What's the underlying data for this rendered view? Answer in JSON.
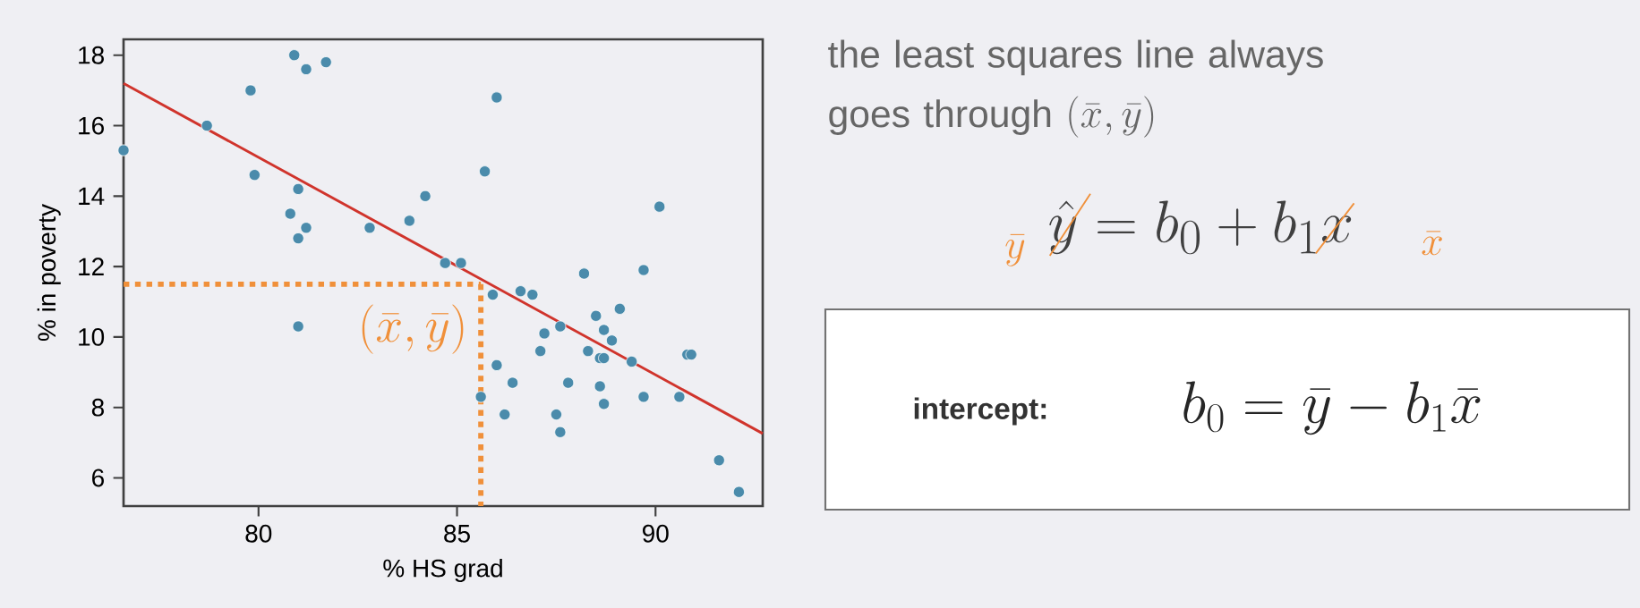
{
  "chart_data": {
    "type": "scatter",
    "xlabel": "% HS grad",
    "ylabel": "% in poverty",
    "xlim": [
      76.6,
      92.7
    ],
    "ylim": [
      5.2,
      18.45
    ],
    "xticks": [
      80,
      85,
      90
    ],
    "yticks": [
      6,
      8,
      10,
      12,
      14,
      16,
      18
    ],
    "marker": "circle",
    "series": [
      {
        "color": "#4a8bab",
        "x": [
          76.6,
          78.7,
          79.8,
          80.9,
          81.2,
          81.7,
          79.9,
          81.0,
          80.8,
          81.2,
          81.0,
          82.8,
          83.8,
          84.2,
          84.7,
          85.1,
          81.0,
          86.0,
          85.7,
          90.1,
          88.2,
          89.7,
          85.9,
          86.6,
          86.9,
          88.5,
          89.1,
          87.2,
          87.6,
          88.7,
          88.9,
          87.1,
          88.3,
          88.6,
          88.7,
          89.4,
          90.8,
          90.9,
          86.0,
          86.4,
          87.8,
          88.6,
          88.7,
          89.7,
          90.6,
          85.6,
          86.2,
          87.5,
          87.6,
          91.6,
          92.1
        ],
        "values": [
          15.3,
          16.0,
          17.0,
          18.0,
          17.6,
          17.8,
          14.6,
          14.2,
          13.5,
          13.1,
          12.8,
          13.1,
          13.3,
          14.0,
          12.1,
          12.1,
          10.3,
          16.8,
          14.7,
          13.7,
          11.8,
          11.9,
          11.2,
          11.3,
          11.2,
          10.6,
          10.8,
          10.1,
          10.3,
          10.2,
          9.9,
          9.6,
          9.6,
          9.4,
          9.4,
          9.3,
          9.5,
          9.5,
          9.2,
          8.7,
          8.7,
          8.6,
          8.1,
          8.3,
          8.3,
          8.3,
          7.8,
          7.8,
          7.3,
          6.5,
          5.6
        ]
      },
      {
        "type": "line",
        "color": "#d0342c",
        "marker": "none",
        "line_style": "solid",
        "x": [
          76.6,
          92.7
        ],
        "values": [
          17.2,
          7.26
        ]
      },
      {
        "type": "line",
        "color": "#f0903a",
        "marker": "none",
        "line_style": "dotted",
        "x": [
          76.6,
          85.6
        ],
        "values": [
          11.5,
          11.5
        ]
      },
      {
        "type": "line",
        "color": "#f0903a",
        "marker": "none",
        "line_style": "dotted",
        "x": [
          85.6,
          85.6
        ],
        "values": [
          11.5,
          5.2
        ]
      }
    ],
    "annotations": [
      {
        "text": "(\\bar{x}, \\bar{y})",
        "x": 85.6,
        "y": 11.5
      },
      "the least squares line always goes through",
      "(\\bar{x}, \\bar{y})",
      "\\bar{y}",
      "\\hat{y} = b_0 + b_1 x",
      "\\bar{x}",
      "intercept:",
      "b_0 = \\bar{y} - b_1 \\bar{x}"
    ]
  }
}
